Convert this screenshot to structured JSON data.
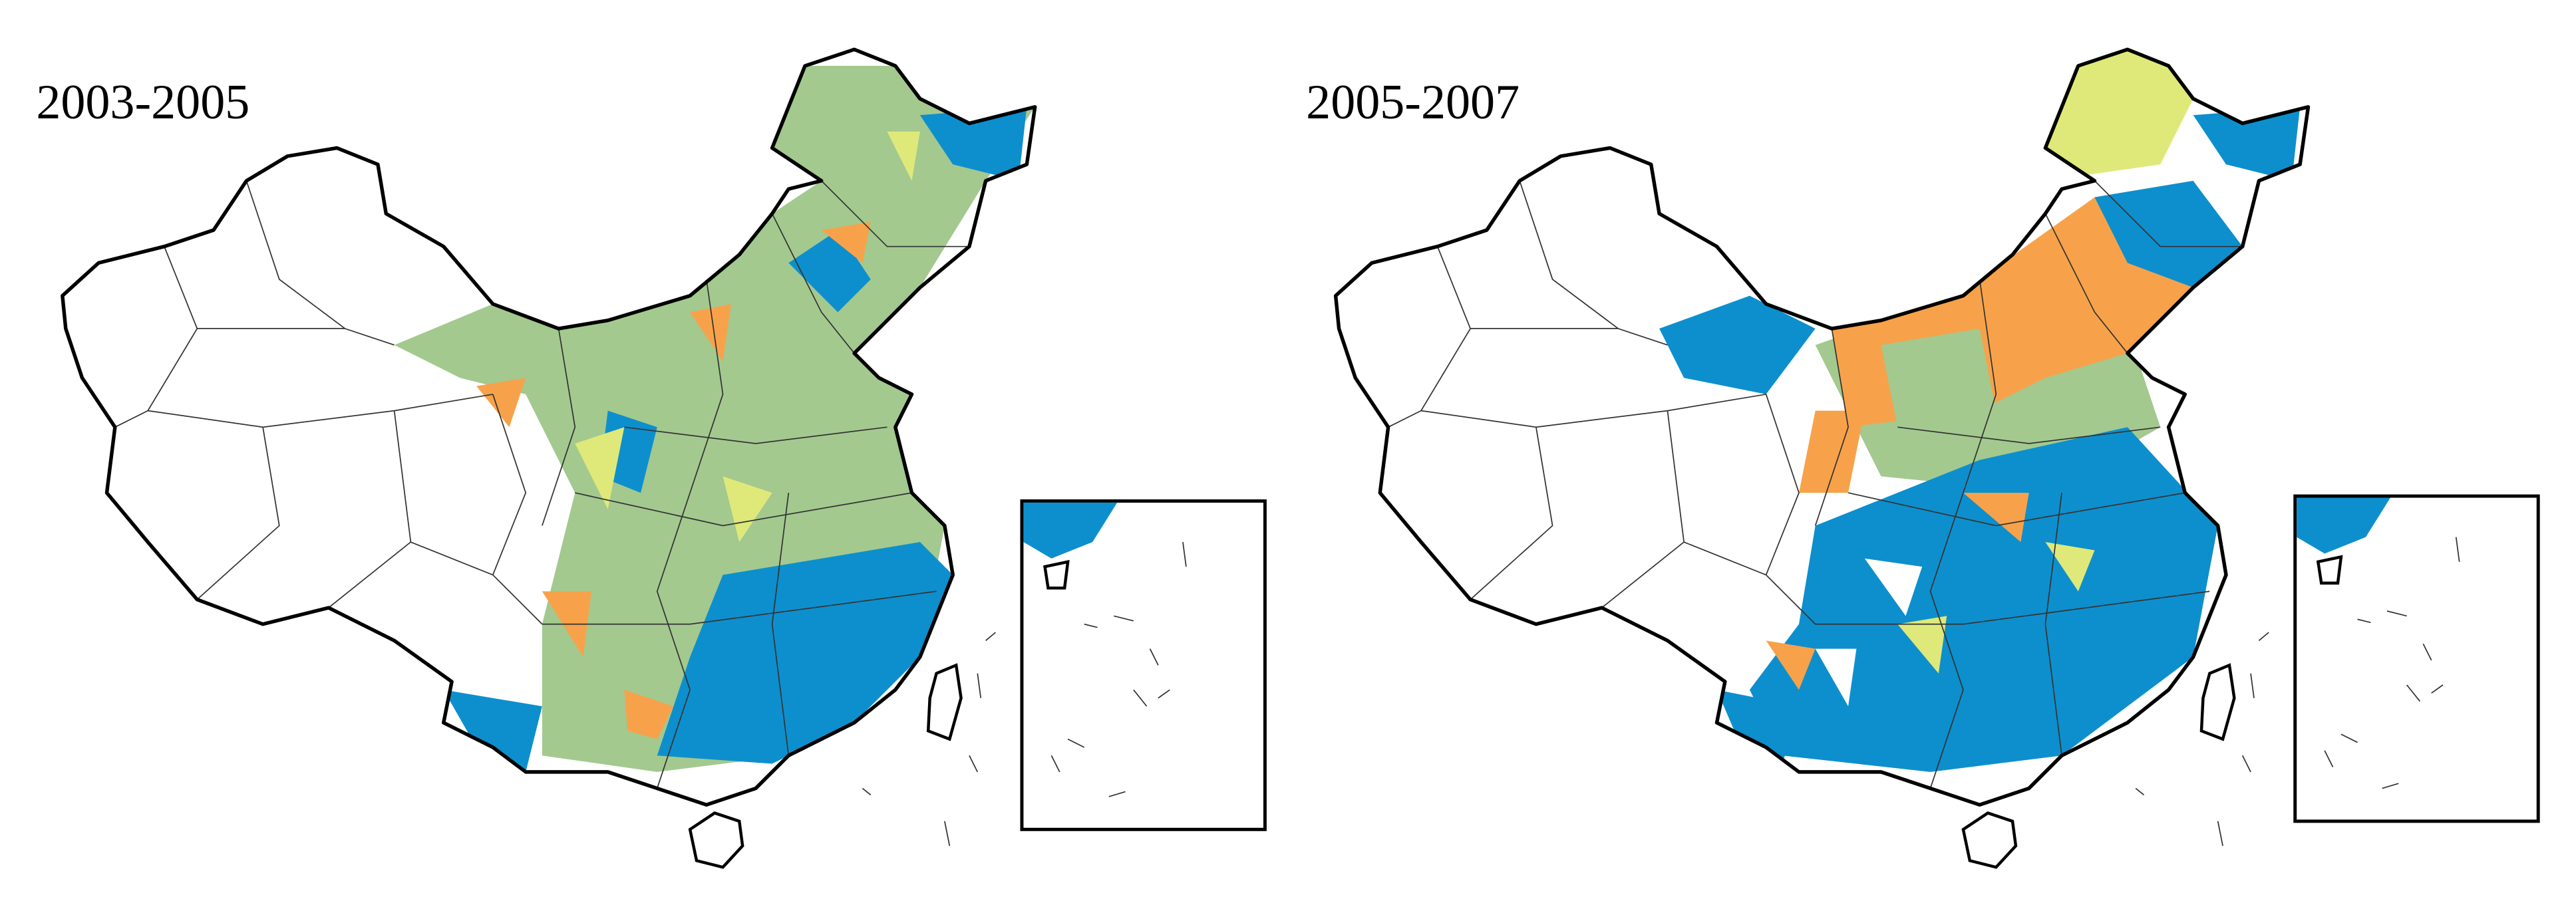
{
  "maps": [
    {
      "title": "2003-2005"
    },
    {
      "title": "2005-2007"
    }
  ]
}
